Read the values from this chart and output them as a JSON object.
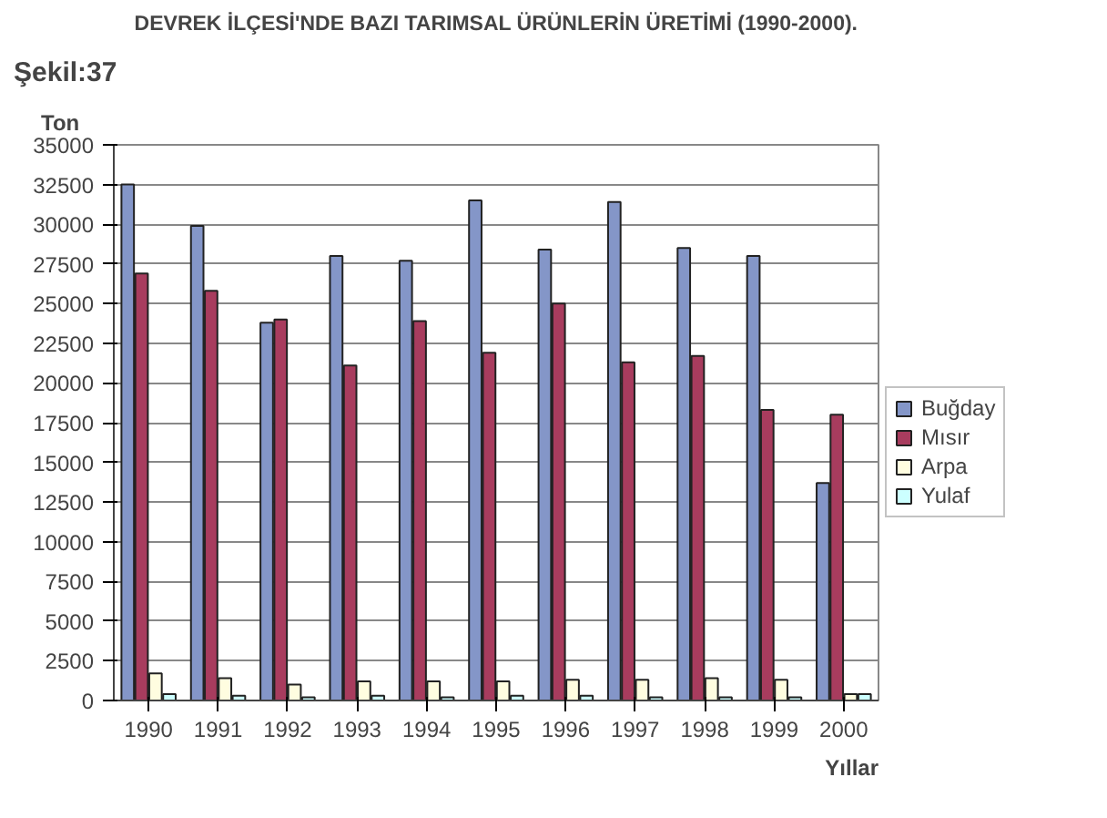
{
  "chart_data": {
    "type": "bar",
    "title": "DEVREK İLÇESİ'NDE BAZI TARIMSAL ÜRÜNLERİN ÜRETİMİ (1990-2000).",
    "ylabel": "Ton",
    "xlabel": "Yıllar",
    "annotations": [
      "Şekil:37"
    ],
    "categories": [
      "1990",
      "1991",
      "1992",
      "1993",
      "1994",
      "1995",
      "1996",
      "1997",
      "1998",
      "1999",
      "2000"
    ],
    "series": [
      {
        "name": "Buğday",
        "color": "#8496c8",
        "values": [
          32500,
          29900,
          23800,
          28000,
          27700,
          31500,
          28400,
          31400,
          28500,
          28000,
          13700
        ]
      },
      {
        "name": "Mısır",
        "color": "#a83c5e",
        "values": [
          26900,
          25800,
          24000,
          21100,
          23900,
          21900,
          25000,
          21300,
          21700,
          18300,
          18000
        ]
      },
      {
        "name": "Arpa",
        "color": "#fffde0",
        "values": [
          1700,
          1400,
          1000,
          1200,
          1200,
          1200,
          1300,
          1300,
          1400,
          1300,
          400
        ]
      },
      {
        "name": "Yulaf",
        "color": "#ccffff",
        "values": [
          400,
          300,
          200,
          300,
          200,
          300,
          300,
          200,
          200,
          200,
          400
        ]
      }
    ],
    "ylim": [
      0,
      35000
    ],
    "yticks": [
      0,
      2500,
      5000,
      7500,
      10000,
      12500,
      15000,
      17500,
      20000,
      22500,
      25000,
      27500,
      30000,
      32500,
      35000
    ],
    "grid": "y",
    "legend": "right"
  }
}
